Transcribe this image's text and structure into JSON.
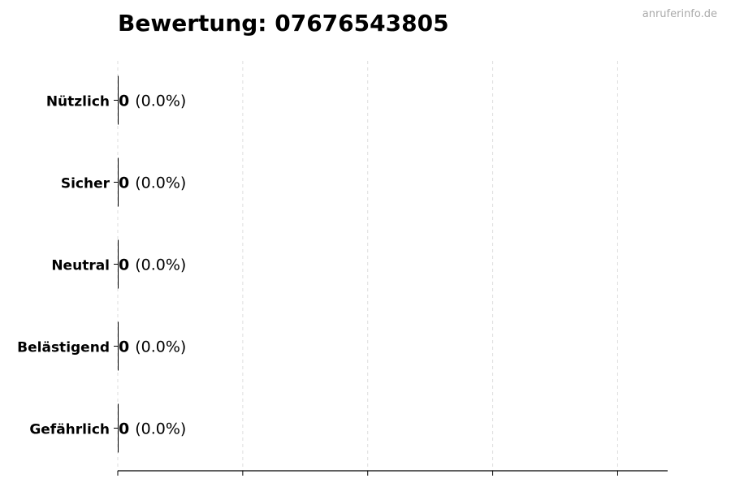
{
  "chart_data": {
    "type": "bar",
    "orientation": "horizontal",
    "title": "Bewertung: 07676543805",
    "categories": [
      "Nützlich",
      "Sicher",
      "Neutral",
      "Belästigend",
      "Gefährlich"
    ],
    "values": [
      0,
      0,
      0,
      0,
      0
    ],
    "labels": [
      {
        "count": "0",
        "percent": "(0.0%)"
      },
      {
        "count": "0",
        "percent": "(0.0%)"
      },
      {
        "count": "0",
        "percent": "(0.0%)"
      },
      {
        "count": "0",
        "percent": "(0.0%)"
      },
      {
        "count": "0",
        "percent": "(0.0%)"
      }
    ],
    "xlabel": "",
    "ylabel": "",
    "xlim": [
      0,
      4.4
    ],
    "xticks": [
      0,
      1,
      2,
      3,
      4
    ],
    "xtick_labels_shown": false,
    "grid": "x-dashed",
    "bar_color": "#000000",
    "grid_color": "#dddddd"
  },
  "watermark": "anruferinfo.de"
}
